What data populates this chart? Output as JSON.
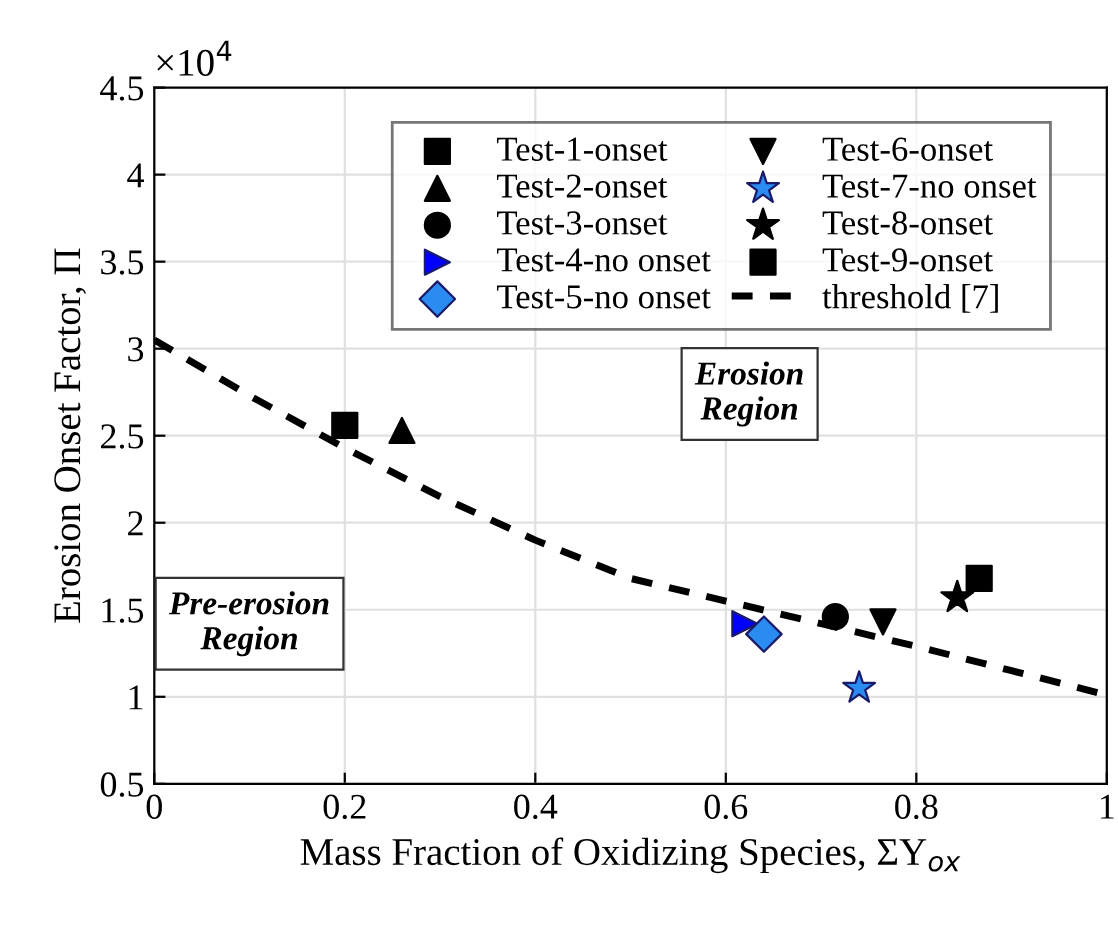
{
  "chart_data": {
    "type": "scatter",
    "xlabel": "Mass Fraction of Oxidizing Species, ΣY$_{ox}$",
    "ylabel": "Erosion Onset Factor, Π",
    "xlim": [
      0,
      1
    ],
    "xticks": [
      0,
      0.2,
      0.4,
      0.6,
      0.8,
      1
    ],
    "ylim": [
      0.5,
      4.5
    ],
    "yticks": [
      0.5,
      1,
      1.5,
      2,
      2.5,
      3,
      3.5,
      4,
      4.5
    ],
    "grid": true,
    "legend": "top right",
    "annotations": [
      "×10$^{4}$",
      "Erosion\nRegion",
      "Pre-erosion\nRegion"
    ],
    "series": [
      {
        "name": "Test-1-onset",
        "color": "#000000",
        "marker": "square",
        "x": [
          0.2
        ],
        "values": [
          2.56
        ]
      },
      {
        "name": "Test-2-onset",
        "color": "#000000",
        "marker": "triangle",
        "x": [
          0.26
        ],
        "values": [
          2.53
        ]
      },
      {
        "name": "Test-3-onset",
        "color": "#000000",
        "marker": "circle",
        "x": [
          0.715
        ],
        "values": [
          1.46
        ]
      },
      {
        "name": "Test-4-no onset",
        "color": "#0000ff",
        "marker": "triangle-right",
        "x": [
          0.62
        ],
        "values": [
          1.42
        ]
      },
      {
        "name": "Test-5-no onset",
        "color": "#2a8cf0",
        "marker": "diamond",
        "x": [
          0.64
        ],
        "values": [
          1.36
        ]
      },
      {
        "name": "Test-6-onset",
        "color": "#000000",
        "marker": "triangle-down",
        "x": [
          0.765
        ],
        "values": [
          1.43
        ]
      },
      {
        "name": "Test-7-no onset",
        "color": "#2a8cf0",
        "marker": "star",
        "x": [
          0.74
        ],
        "values": [
          1.05
        ]
      },
      {
        "name": "Test-8-onset",
        "color": "#000000",
        "marker": "star",
        "x": [
          0.843
        ],
        "values": [
          1.57
        ]
      },
      {
        "name": "Test-9-onset",
        "color": "#000000",
        "marker": "square",
        "x": [
          0.866
        ],
        "values": [
          1.68
        ]
      },
      {
        "name": "threshold [7]",
        "type": "line",
        "color": "#000000",
        "line_style": "dashed",
        "marker": "none",
        "x": [
          0,
          0.1,
          0.2,
          0.3,
          0.4,
          0.5,
          0.6,
          0.7,
          0.8,
          0.9,
          1
        ],
        "values": [
          3.05,
          2.73,
          2.43,
          2.15,
          1.9,
          1.68,
          1.55,
          1.42,
          1.29,
          1.15,
          1.01
        ]
      }
    ]
  }
}
